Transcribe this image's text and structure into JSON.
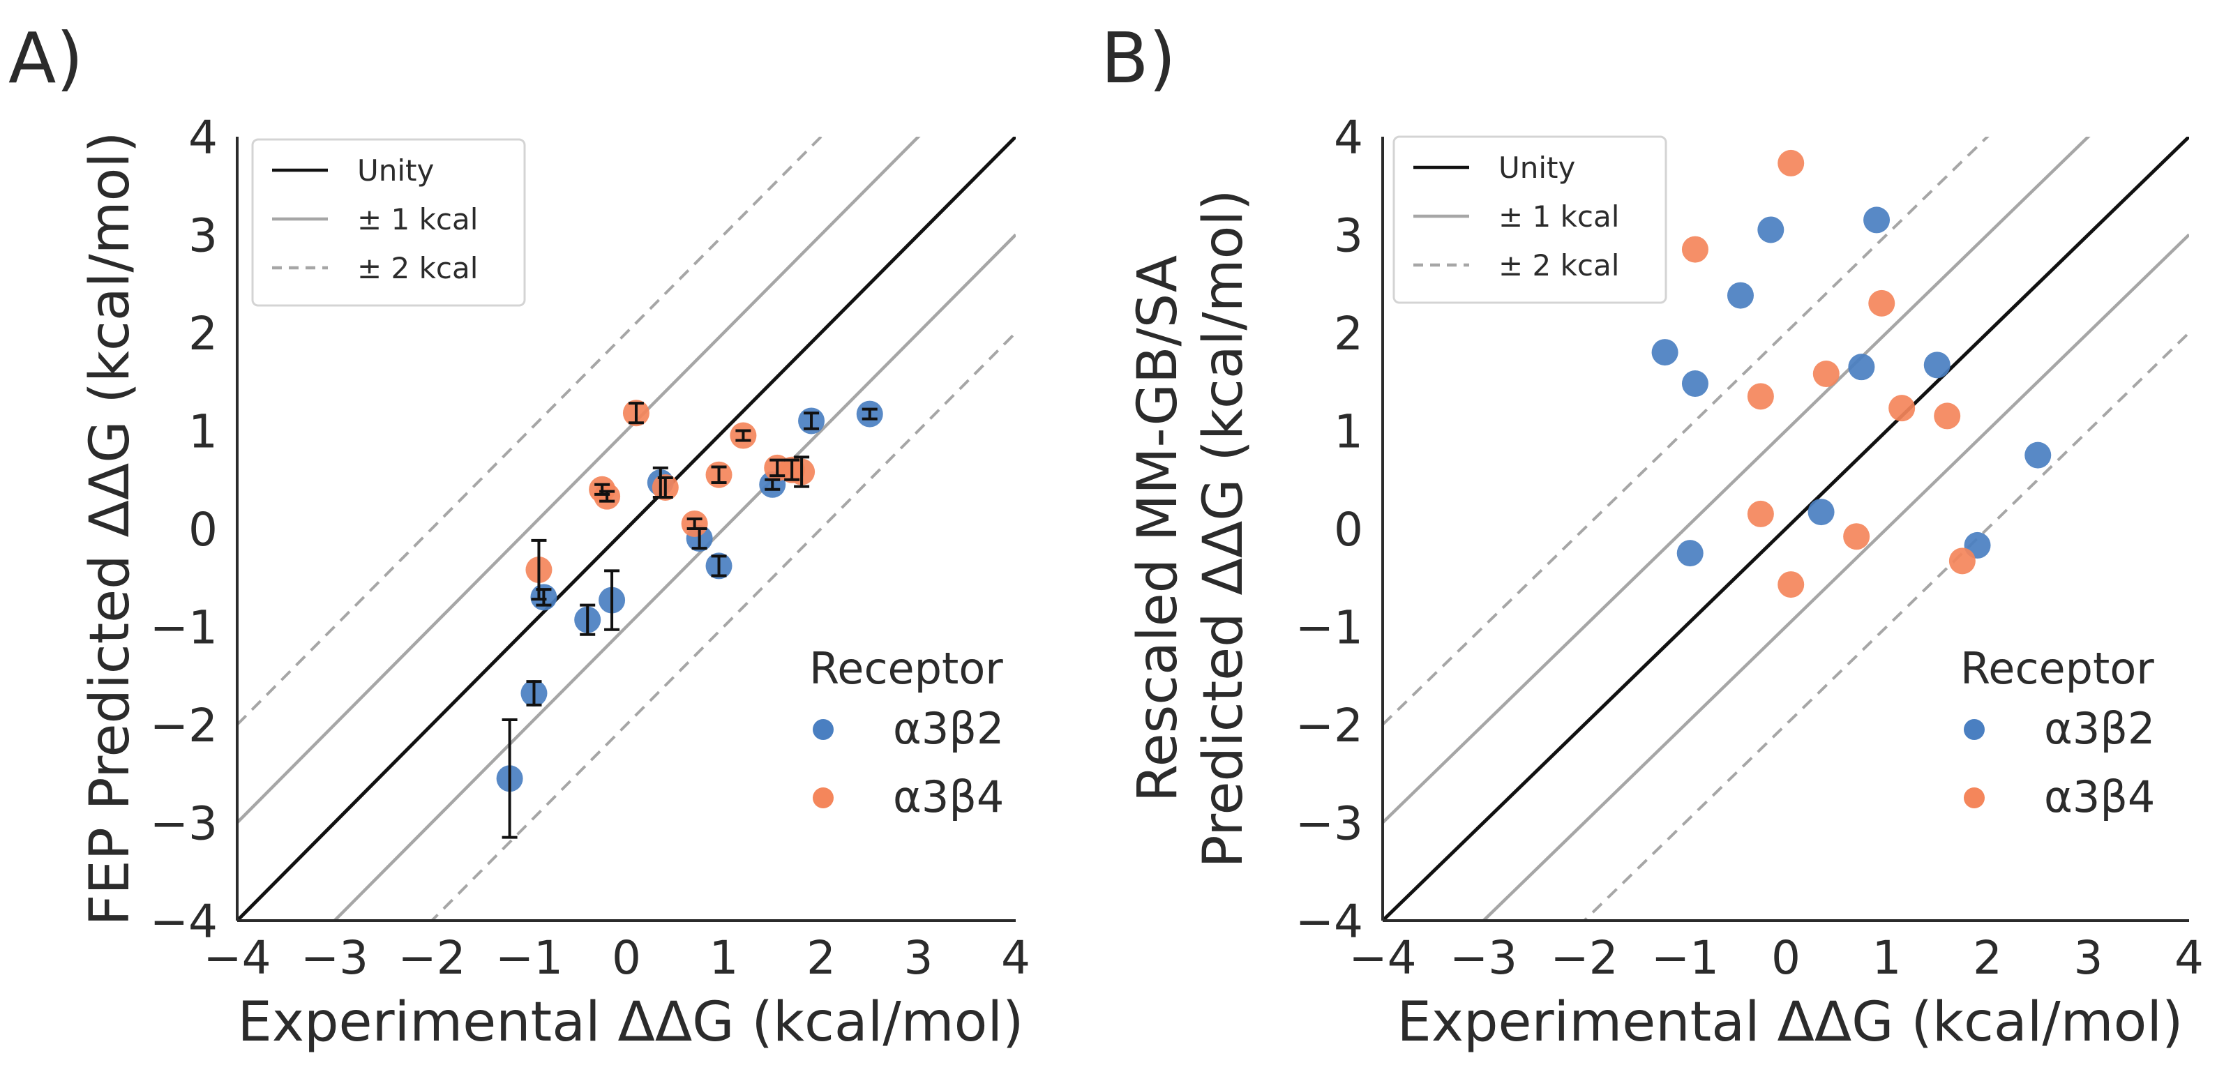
{
  "figure": {
    "colors": {
      "a3b2": "#4a7fc1",
      "a3b4": "#f4865b",
      "unity": "#111111",
      "band1": "#a6a6a6",
      "band2": "#a6a6a6",
      "errorbar": "#111111",
      "axis": "#2b2b2b"
    },
    "line_legend": {
      "unity": "Unity",
      "one_kcal": "± 1 kcal",
      "two_kcal": "± 2 kcal"
    },
    "receptor_legend": {
      "title": "Receptor",
      "a3b2": "α3β2",
      "a3b4": "α3β4"
    }
  },
  "chart_data": [
    {
      "type": "scatter",
      "panel_label": "A)",
      "title": "",
      "xlabel": "Experimental ΔΔG (kcal/mol)",
      "ylabel_lines": [
        "FEP Predicted ΔΔG (kcal/mol)"
      ],
      "xlim": [
        -4,
        4
      ],
      "ylim": [
        -4,
        4
      ],
      "xticks": [
        "−4",
        "−3",
        "−2",
        "−1",
        "0",
        "1",
        "2",
        "3",
        "4"
      ],
      "yticks": [
        "−4",
        "−3",
        "−2",
        "−1",
        "0",
        "1",
        "2",
        "3",
        "4"
      ],
      "series": [
        {
          "name": "α3β2",
          "color_key": "a3b2",
          "points": [
            {
              "x": -1.2,
              "y": -2.55,
              "err": 0.6
            },
            {
              "x": -0.95,
              "y": -1.68,
              "err": 0.12
            },
            {
              "x": -0.85,
              "y": -0.7,
              "err": 0.08
            },
            {
              "x": -0.4,
              "y": -0.93,
              "err": 0.15
            },
            {
              "x": -0.15,
              "y": -0.73,
              "err": 0.3
            },
            {
              "x": 0.35,
              "y": 0.47,
              "err": 0.15
            },
            {
              "x": 0.75,
              "y": -0.1,
              "err": 0.1
            },
            {
              "x": 0.95,
              "y": -0.38,
              "err": 0.1
            },
            {
              "x": 1.5,
              "y": 0.45,
              "err": 0.05
            },
            {
              "x": 1.9,
              "y": 1.1,
              "err": 0.08
            },
            {
              "x": 2.5,
              "y": 1.17,
              "err": 0.05
            }
          ]
        },
        {
          "name": "α3β4",
          "color_key": "a3b4",
          "points": [
            {
              "x": -0.9,
              "y": -0.42,
              "err": 0.3
            },
            {
              "x": -0.25,
              "y": 0.4,
              "err": 0.05
            },
            {
              "x": -0.2,
              "y": 0.33,
              "err": 0.05
            },
            {
              "x": 0.1,
              "y": 1.18,
              "err": 0.1
            },
            {
              "x": 0.4,
              "y": 0.42,
              "err": 0.1
            },
            {
              "x": 0.7,
              "y": 0.05,
              "err": 0.05
            },
            {
              "x": 0.95,
              "y": 0.55,
              "err": 0.08
            },
            {
              "x": 1.2,
              "y": 0.95,
              "err": 0.05
            },
            {
              "x": 1.55,
              "y": 0.62,
              "err": 0.08
            },
            {
              "x": 1.7,
              "y": 0.6,
              "err": 0.1
            },
            {
              "x": 1.8,
              "y": 0.58,
              "err": 0.15
            }
          ]
        }
      ],
      "reference_lines": [
        "Unity",
        "± 1 kcal",
        "± 2 kcal"
      ],
      "legend_position": "upper-left",
      "receptor_legend_position": "lower-right"
    },
    {
      "type": "scatter",
      "panel_label": "B)",
      "title": "",
      "xlabel": "Experimental ΔΔG (kcal/mol)",
      "ylabel_lines": [
        "Rescaled MM-GB/SA",
        "Predicted ΔΔG (kcal/mol)"
      ],
      "xlim": [
        -4,
        4
      ],
      "ylim": [
        -4,
        4
      ],
      "xticks": [
        "−4",
        "−3",
        "−2",
        "−1",
        "0",
        "1",
        "2",
        "3",
        "4"
      ],
      "yticks": [
        "−4",
        "−3",
        "−2",
        "−1",
        "0",
        "1",
        "2",
        "3",
        "4"
      ],
      "series": [
        {
          "name": "α3β2",
          "color_key": "a3b2",
          "points": [
            {
              "x": -1.2,
              "y": 1.8
            },
            {
              "x": -0.95,
              "y": -0.25
            },
            {
              "x": -0.9,
              "y": 1.48
            },
            {
              "x": -0.45,
              "y": 2.38
            },
            {
              "x": -0.15,
              "y": 3.05
            },
            {
              "x": 0.35,
              "y": 0.17
            },
            {
              "x": 0.75,
              "y": 1.65
            },
            {
              "x": 0.9,
              "y": 3.15
            },
            {
              "x": 1.5,
              "y": 1.67
            },
            {
              "x": 1.9,
              "y": -0.17
            },
            {
              "x": 2.5,
              "y": 0.75
            }
          ]
        },
        {
          "name": "α3β4",
          "color_key": "a3b4",
          "points": [
            {
              "x": -0.9,
              "y": 2.85
            },
            {
              "x": -0.25,
              "y": 1.35
            },
            {
              "x": -0.25,
              "y": 0.15
            },
            {
              "x": 0.05,
              "y": 3.73
            },
            {
              "x": 0.05,
              "y": -0.57
            },
            {
              "x": 0.4,
              "y": 1.58
            },
            {
              "x": 0.7,
              "y": -0.08
            },
            {
              "x": 0.95,
              "y": 2.3
            },
            {
              "x": 1.15,
              "y": 1.23
            },
            {
              "x": 1.6,
              "y": 1.15
            },
            {
              "x": 1.75,
              "y": -0.33
            }
          ]
        }
      ],
      "reference_lines": [
        "Unity",
        "± 1 kcal",
        "± 2 kcal"
      ],
      "legend_position": "upper-left",
      "receptor_legend_position": "lower-right"
    }
  ]
}
